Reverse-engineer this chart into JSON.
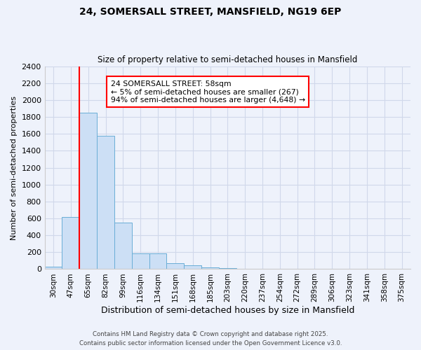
{
  "title1": "24, SOMERSALL STREET, MANSFIELD, NG19 6EP",
  "title2": "Size of property relative to semi-detached houses in Mansfield",
  "xlabel": "Distribution of semi-detached houses by size in Mansfield",
  "ylabel": "Number of semi-detached properties",
  "bin_labels": [
    "30sqm",
    "47sqm",
    "65sqm",
    "82sqm",
    "99sqm",
    "116sqm",
    "134sqm",
    "151sqm",
    "168sqm",
    "185sqm",
    "203sqm",
    "220sqm",
    "237sqm",
    "254sqm",
    "272sqm",
    "289sqm",
    "306sqm",
    "323sqm",
    "341sqm",
    "358sqm",
    "375sqm"
  ],
  "bar_values": [
    30,
    620,
    1850,
    1580,
    550,
    185,
    185,
    70,
    45,
    20,
    10,
    0,
    0,
    0,
    0,
    0,
    0,
    0,
    0,
    0,
    0
  ],
  "bar_color": "#ccdff5",
  "bar_edge_color": "#6aaed6",
  "red_line_x": 1.5,
  "annotation_text": "24 SOMERSALL STREET: 58sqm\n← 5% of semi-detached houses are smaller (267)\n94% of semi-detached houses are larger (4,648) →",
  "ylim": [
    0,
    2400
  ],
  "yticks": [
    0,
    200,
    400,
    600,
    800,
    1000,
    1200,
    1400,
    1600,
    1800,
    2000,
    2200,
    2400
  ],
  "footer1": "Contains HM Land Registry data © Crown copyright and database right 2025.",
  "footer2": "Contains public sector information licensed under the Open Government Licence v3.0.",
  "bg_color": "#eef2fb",
  "grid_color": "#d0d8ea"
}
